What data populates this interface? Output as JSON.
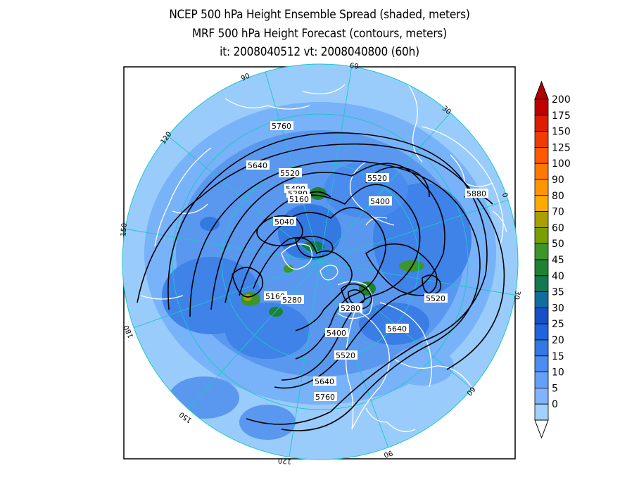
{
  "title": {
    "line1": "NCEP 500 hPa Height Ensemble Spread (shaded, meters)",
    "line2": "MRF 500 hPa Height Forecast (contours, meters)",
    "line3": "it: 2008040512      vt: 2008040800 (60h)"
  },
  "longitude_labels": [
    "60",
    "30",
    "0",
    "30",
    "60",
    "90",
    "120",
    "150",
    "180",
    "150",
    "120",
    "90"
  ],
  "contour_labels": [
    "5760",
    "5640",
    "5520",
    "5400",
    "5280",
    "5160",
    "5040",
    "5520",
    "5400",
    "5880",
    "5160",
    "5280",
    "5280",
    "5520",
    "5640",
    "5400",
    "5520",
    "5640",
    "5760"
  ],
  "colorbar": {
    "labels": [
      "200",
      "175",
      "150",
      "125",
      "100",
      "90",
      "80",
      "70",
      "60",
      "50",
      "45",
      "40",
      "35",
      "30",
      "25",
      "20",
      "15",
      "10",
      "5",
      "0"
    ],
    "colors": [
      "#c00000",
      "#dd1c00",
      "#f03c00",
      "#ff5a00",
      "#ff7800",
      "#ff9600",
      "#ffaa00",
      "#a8a000",
      "#78a000",
      "#3c9628",
      "#1e8232",
      "#147850",
      "#0f6ea0",
      "#1450c8",
      "#1e64dc",
      "#3278e6",
      "#4b8cf0",
      "#64a0f8",
      "#80b4ff",
      "#a0d2ff"
    ],
    "top_arrow_color": "#b40000",
    "bottom_arrow_color": "#ffffff"
  }
}
